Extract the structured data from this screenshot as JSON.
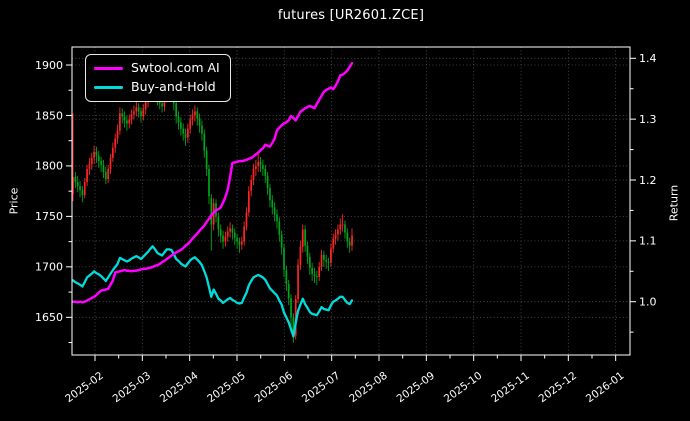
{
  "title": "futures [UR2601.ZCE]",
  "legend": {
    "items": [
      {
        "label": "Swtool.com AI",
        "color": "#ff00ff"
      },
      {
        "label": "Buy-and-Hold",
        "color": "#00dcdc"
      }
    ]
  },
  "axes": {
    "left": {
      "label": "Price",
      "ticks": [
        1650,
        1700,
        1750,
        1800,
        1850,
        1900
      ]
    },
    "right": {
      "label": "Return",
      "ticks": [
        1.0,
        1.1,
        1.2,
        1.3,
        1.4
      ]
    },
    "x": {
      "tick_labels": [
        "2025-02",
        "2025-03",
        "2025-04",
        "2025-05",
        "2025-06",
        "2025-07",
        "2025-08",
        "2025-09",
        "2025-10",
        "2025-11",
        "2025-12",
        "2026-01"
      ]
    }
  },
  "chart_data": {
    "type": "candlestick+line",
    "title": "futures [UR2601.ZCE]",
    "ylabel_left": "Price",
    "ylabel_right": "Return",
    "ylim_left": [
      1613,
      1918
    ],
    "ylim_right": [
      0.912,
      1.419
    ],
    "grid": true,
    "legend_position": "upper left",
    "background": "#000000",
    "candle_colors": {
      "up": "#ff2525",
      "down": "#01a61c"
    },
    "dates": [
      "2025-01-15",
      "2025-01-16",
      "2025-01-17",
      "2025-01-20",
      "2025-01-21",
      "2025-01-22",
      "2025-01-23",
      "2025-01-24",
      "2025-01-27",
      "2025-02-05",
      "2025-02-06",
      "2025-02-07",
      "2025-02-10",
      "2025-02-11",
      "2025-02-12",
      "2025-02-13",
      "2025-02-14",
      "2025-02-17",
      "2025-02-18",
      "2025-02-19",
      "2025-02-20",
      "2025-02-21",
      "2025-02-24",
      "2025-02-25",
      "2025-02-26",
      "2025-02-27",
      "2025-02-28",
      "2025-03-03",
      "2025-03-04",
      "2025-03-05",
      "2025-03-06",
      "2025-03-07",
      "2025-03-10",
      "2025-03-11",
      "2025-03-12",
      "2025-03-13",
      "2025-03-14",
      "2025-03-17",
      "2025-03-18",
      "2025-03-19",
      "2025-03-20",
      "2025-03-21",
      "2025-03-24",
      "2025-03-25",
      "2025-03-26",
      "2025-03-27",
      "2025-03-28",
      "2025-03-31",
      "2025-04-01",
      "2025-04-02",
      "2025-04-03",
      "2025-04-07",
      "2025-04-08",
      "2025-04-09",
      "2025-04-10",
      "2025-04-11",
      "2025-04-14",
      "2025-04-15",
      "2025-04-16",
      "2025-04-17",
      "2025-04-18",
      "2025-04-21",
      "2025-04-22",
      "2025-04-23",
      "2025-04-24",
      "2025-04-25",
      "2025-04-28",
      "2025-04-29",
      "2025-04-30",
      "2025-05-06",
      "2025-05-07",
      "2025-05-08",
      "2025-05-09",
      "2025-05-12",
      "2025-05-13",
      "2025-05-14",
      "2025-05-15",
      "2025-05-16",
      "2025-05-19",
      "2025-05-20",
      "2025-05-21",
      "2025-05-22",
      "2025-05-23",
      "2025-05-26",
      "2025-05-27",
      "2025-05-28",
      "2025-05-29",
      "2025-05-30",
      "2025-06-03",
      "2025-06-04",
      "2025-06-05",
      "2025-06-06",
      "2025-06-09",
      "2025-06-10",
      "2025-06-11",
      "2025-06-12",
      "2025-06-13",
      "2025-06-16",
      "2025-06-17",
      "2025-06-18",
      "2025-06-19",
      "2025-06-20",
      "2025-06-23",
      "2025-06-24",
      "2025-06-25",
      "2025-06-26",
      "2025-06-27",
      "2025-06-30",
      "2025-07-01",
      "2025-07-02",
      "2025-07-03",
      "2025-07-04",
      "2025-07-07",
      "2025-07-08",
      "2025-07-09",
      "2025-07-10",
      "2025-07-11",
      "2025-07-14",
      "2025-07-15",
      "2025-07-16"
    ],
    "ohlc": [
      [
        1772,
        1852,
        1765,
        1789
      ],
      [
        1789,
        1794,
        1778,
        1784
      ],
      [
        1784,
        1790,
        1774,
        1780
      ],
      [
        1780,
        1785,
        1769,
        1776
      ],
      [
        1776,
        1780,
        1764,
        1771
      ],
      [
        1771,
        1788,
        1768,
        1784
      ],
      [
        1784,
        1801,
        1780,
        1797
      ],
      [
        1797,
        1808,
        1791,
        1802
      ],
      [
        1802,
        1813,
        1796,
        1808
      ],
      [
        1808,
        1820,
        1802,
        1814
      ],
      [
        1814,
        1819,
        1803,
        1810
      ],
      [
        1810,
        1815,
        1798,
        1805
      ],
      [
        1805,
        1809,
        1794,
        1801
      ],
      [
        1801,
        1806,
        1788,
        1794
      ],
      [
        1794,
        1799,
        1782,
        1787
      ],
      [
        1787,
        1801,
        1783,
        1797
      ],
      [
        1797,
        1812,
        1792,
        1808
      ],
      [
        1808,
        1823,
        1804,
        1818
      ],
      [
        1818,
        1832,
        1813,
        1827
      ],
      [
        1827,
        1841,
        1822,
        1835
      ],
      [
        1835,
        1858,
        1831,
        1852
      ],
      [
        1852,
        1857,
        1842,
        1849
      ],
      [
        1849,
        1854,
        1838,
        1845
      ],
      [
        1845,
        1850,
        1835,
        1842
      ],
      [
        1842,
        1851,
        1837,
        1846
      ],
      [
        1846,
        1856,
        1841,
        1851
      ],
      [
        1851,
        1860,
        1846,
        1854
      ],
      [
        1854,
        1864,
        1849,
        1858
      ],
      [
        1858,
        1862,
        1848,
        1854
      ],
      [
        1854,
        1858,
        1843,
        1849
      ],
      [
        1849,
        1861,
        1845,
        1856
      ],
      [
        1856,
        1868,
        1851,
        1863
      ],
      [
        1863,
        1875,
        1858,
        1870
      ],
      [
        1870,
        1884,
        1865,
        1878
      ],
      [
        1878,
        1902,
        1873,
        1885
      ],
      [
        1885,
        1890,
        1869,
        1876
      ],
      [
        1876,
        1893,
        1860,
        1866
      ],
      [
        1866,
        1890,
        1856,
        1862
      ],
      [
        1862,
        1887,
        1853,
        1859
      ],
      [
        1859,
        1897,
        1854,
        1868
      ],
      [
        1868,
        1905,
        1863,
        1877
      ],
      [
        1877,
        1896,
        1870,
        1876
      ],
      [
        1876,
        1890,
        1868,
        1875
      ],
      [
        1875,
        1879,
        1855,
        1862
      ],
      [
        1862,
        1866,
        1842,
        1849
      ],
      [
        1849,
        1854,
        1836,
        1843
      ],
      [
        1843,
        1848,
        1830,
        1837
      ],
      [
        1837,
        1842,
        1825,
        1832
      ],
      [
        1832,
        1837,
        1820,
        1828
      ],
      [
        1828,
        1842,
        1823,
        1837
      ],
      [
        1837,
        1851,
        1832,
        1846
      ],
      [
        1846,
        1856,
        1840,
        1850
      ],
      [
        1850,
        1860,
        1844,
        1854
      ],
      [
        1854,
        1858,
        1840,
        1847
      ],
      [
        1847,
        1852,
        1833,
        1840
      ],
      [
        1840,
        1845,
        1825,
        1832
      ],
      [
        1832,
        1836,
        1808,
        1815
      ],
      [
        1815,
        1819,
        1790,
        1797
      ],
      [
        1797,
        1801,
        1762,
        1770
      ],
      [
        1768,
        1772,
        1716,
        1742
      ],
      [
        1742,
        1768,
        1736,
        1763
      ],
      [
        1763,
        1767,
        1744,
        1750
      ],
      [
        1750,
        1754,
        1730,
        1737
      ],
      [
        1737,
        1742,
        1724,
        1731
      ],
      [
        1731,
        1736,
        1718,
        1725
      ],
      [
        1725,
        1735,
        1720,
        1730
      ],
      [
        1730,
        1740,
        1725,
        1735
      ],
      [
        1735,
        1744,
        1729,
        1738
      ],
      [
        1738,
        1742,
        1727,
        1734
      ],
      [
        1734,
        1738,
        1722,
        1729
      ],
      [
        1729,
        1733,
        1718,
        1725
      ],
      [
        1725,
        1729,
        1714,
        1722
      ],
      [
        1722,
        1730,
        1717,
        1725
      ],
      [
        1725,
        1745,
        1721,
        1740
      ],
      [
        1740,
        1759,
        1736,
        1754
      ],
      [
        1754,
        1780,
        1750,
        1775
      ],
      [
        1775,
        1791,
        1770,
        1786
      ],
      [
        1786,
        1802,
        1781,
        1797
      ],
      [
        1797,
        1806,
        1790,
        1800
      ],
      [
        1800,
        1812,
        1794,
        1804
      ],
      [
        1804,
        1809,
        1794,
        1801
      ],
      [
        1801,
        1806,
        1790,
        1797
      ],
      [
        1797,
        1801,
        1783,
        1790
      ],
      [
        1790,
        1794,
        1771,
        1778
      ],
      [
        1778,
        1782,
        1759,
        1766
      ],
      [
        1766,
        1771,
        1752,
        1759
      ],
      [
        1759,
        1764,
        1745,
        1752
      ],
      [
        1752,
        1757,
        1738,
        1745
      ],
      [
        1745,
        1749,
        1725,
        1732
      ],
      [
        1732,
        1736,
        1712,
        1719
      ],
      [
        1719,
        1723,
        1690,
        1697
      ],
      [
        1697,
        1701,
        1676,
        1683
      ],
      [
        1683,
        1687,
        1662,
        1669
      ],
      [
        1669,
        1673,
        1635,
        1650
      ],
      [
        1650,
        1654,
        1625,
        1630
      ],
      [
        1632,
        1672,
        1628,
        1668
      ],
      [
        1668,
        1708,
        1664,
        1702
      ],
      [
        1702,
        1726,
        1697,
        1720
      ],
      [
        1720,
        1742,
        1714,
        1737
      ],
      [
        1737,
        1741,
        1715,
        1721
      ],
      [
        1721,
        1725,
        1703,
        1710
      ],
      [
        1710,
        1714,
        1692,
        1699
      ],
      [
        1699,
        1704,
        1686,
        1693
      ],
      [
        1693,
        1699,
        1684,
        1691
      ],
      [
        1691,
        1696,
        1682,
        1690
      ],
      [
        1690,
        1705,
        1686,
        1700
      ],
      [
        1700,
        1717,
        1696,
        1712
      ],
      [
        1712,
        1716,
        1700,
        1707
      ],
      [
        1707,
        1712,
        1698,
        1705
      ],
      [
        1705,
        1709,
        1696,
        1704
      ],
      [
        1704,
        1723,
        1700,
        1718
      ],
      [
        1718,
        1733,
        1714,
        1728
      ],
      [
        1728,
        1737,
        1722,
        1732
      ],
      [
        1732,
        1742,
        1726,
        1737
      ],
      [
        1737,
        1748,
        1732,
        1742
      ],
      [
        1742,
        1752,
        1735,
        1742
      ],
      [
        1742,
        1746,
        1728,
        1734
      ],
      [
        1734,
        1738,
        1719,
        1725
      ],
      [
        1725,
        1729,
        1714,
        1721
      ],
      [
        1721,
        1738,
        1716,
        1731
      ]
    ],
    "series": [
      {
        "name": "Swtool.com AI",
        "axis": "right",
        "color": "#ff00ff",
        "values": [
          1.0,
          1.0,
          0.999,
          1.0,
          0.999,
          1.0,
          1.002,
          1.004,
          1.006,
          1.008,
          1.011,
          1.015,
          1.018,
          1.019,
          1.02,
          1.021,
          1.028,
          1.035,
          1.048,
          1.049,
          1.05,
          1.051,
          1.052,
          1.051,
          1.051,
          1.05,
          1.051,
          1.051,
          1.052,
          1.053,
          1.054,
          1.054,
          1.055,
          1.056,
          1.057,
          1.059,
          1.06,
          1.062,
          1.065,
          1.067,
          1.07,
          1.073,
          1.076,
          1.078,
          1.081,
          1.083,
          1.085,
          1.088,
          1.092,
          1.095,
          1.099,
          1.104,
          1.108,
          1.112,
          1.117,
          1.121,
          1.125,
          1.131,
          1.136,
          1.142,
          1.146,
          1.15,
          1.152,
          1.155,
          1.163,
          1.172,
          1.184,
          1.205,
          1.228,
          1.229,
          1.23,
          1.231,
          1.231,
          1.232,
          1.233,
          1.235,
          1.236,
          1.239,
          1.242,
          1.245,
          1.249,
          1.252,
          1.258,
          1.256,
          1.255,
          1.261,
          1.268,
          1.282,
          1.286,
          1.29,
          1.293,
          1.295,
          1.298,
          1.305,
          1.302,
          1.298,
          1.305,
          1.312,
          1.315,
          1.318,
          1.32,
          1.322,
          1.32,
          1.318,
          1.325,
          1.332,
          1.338,
          1.345,
          1.348,
          1.35,
          1.352,
          1.349,
          1.355,
          1.362,
          1.372,
          1.373,
          1.376,
          1.38,
          1.386,
          1.392
        ]
      },
      {
        "name": "Buy-and-Hold",
        "axis": "right",
        "color": "#00dcdc",
        "values": [
          1.035,
          1.032,
          1.03,
          1.028,
          1.025,
          1.032,
          1.04,
          1.043,
          1.046,
          1.05,
          1.047,
          1.045,
          1.042,
          1.038,
          1.034,
          1.04,
          1.046,
          1.052,
          1.057,
          1.062,
          1.072,
          1.07,
          1.068,
          1.066,
          1.068,
          1.071,
          1.073,
          1.075,
          1.073,
          1.07,
          1.074,
          1.078,
          1.082,
          1.087,
          1.091,
          1.086,
          1.08,
          1.078,
          1.076,
          1.081,
          1.086,
          1.086,
          1.085,
          1.078,
          1.07,
          1.067,
          1.063,
          1.06,
          1.058,
          1.063,
          1.068,
          1.071,
          1.073,
          1.069,
          1.065,
          1.06,
          1.05,
          1.04,
          1.024,
          1.008,
          1.02,
          1.013,
          1.005,
          1.002,
          0.998,
          1.001,
          1.004,
          1.006,
          1.003,
          1.001,
          0.998,
          0.997,
          0.998,
          1.007,
          1.015,
          1.027,
          1.034,
          1.04,
          1.042,
          1.044,
          1.042,
          1.04,
          1.036,
          1.029,
          1.022,
          1.018,
          1.014,
          1.01,
          1.002,
          0.995,
          0.982,
          0.974,
          0.966,
          0.955,
          0.943,
          0.965,
          0.985,
          0.995,
          1.005,
          0.996,
          0.99,
          0.983,
          0.98,
          0.979,
          0.978,
          0.984,
          0.991,
          0.988,
          0.987,
          0.986,
          0.994,
          1.0,
          1.002,
          1.005,
          1.008,
          1.008,
          1.003,
          0.998,
          0.996,
          1.002
        ]
      }
    ]
  }
}
